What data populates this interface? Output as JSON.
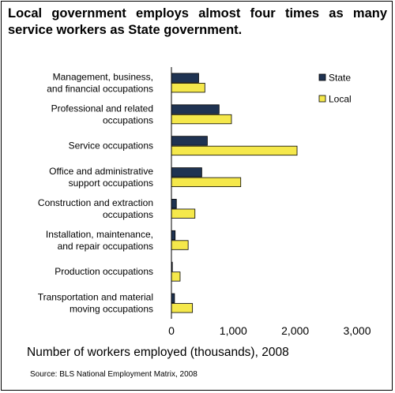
{
  "chart_data": {
    "type": "bar",
    "orientation": "horizontal",
    "title": "Local government employs almost four times as many service workers as State government.",
    "xlabel": "Number of workers employed (thousands), 2008",
    "ylabel": "",
    "xlim": [
      0,
      3000
    ],
    "xticks": [
      0,
      1000,
      2000,
      3000
    ],
    "xtick_labels": [
      "0",
      "1,000",
      "2,000",
      "3,000"
    ],
    "grid": false,
    "legend_position": "top-right",
    "categories": [
      [
        "Management, business,",
        "and financial occupations"
      ],
      [
        "Professional and related",
        "occupations"
      ],
      [
        "Service occupations"
      ],
      [
        "Office and administrative",
        "support occupations"
      ],
      [
        "Construction and extraction",
        "occupations"
      ],
      [
        "Installation, maintenance,",
        "and repair occupations"
      ],
      [
        "Production occupations"
      ],
      [
        "Transportation and material",
        "moving occupations"
      ]
    ],
    "series": [
      {
        "name": "State",
        "color": "#1f3352",
        "values": [
          440,
          770,
          580,
          490,
          80,
          60,
          15,
          50
        ]
      },
      {
        "name": "Local",
        "color": "#f5e84b",
        "values": [
          540,
          970,
          2030,
          1120,
          380,
          270,
          140,
          340
        ]
      }
    ]
  },
  "source": "Source: BLS National Employment Matrix, 2008"
}
